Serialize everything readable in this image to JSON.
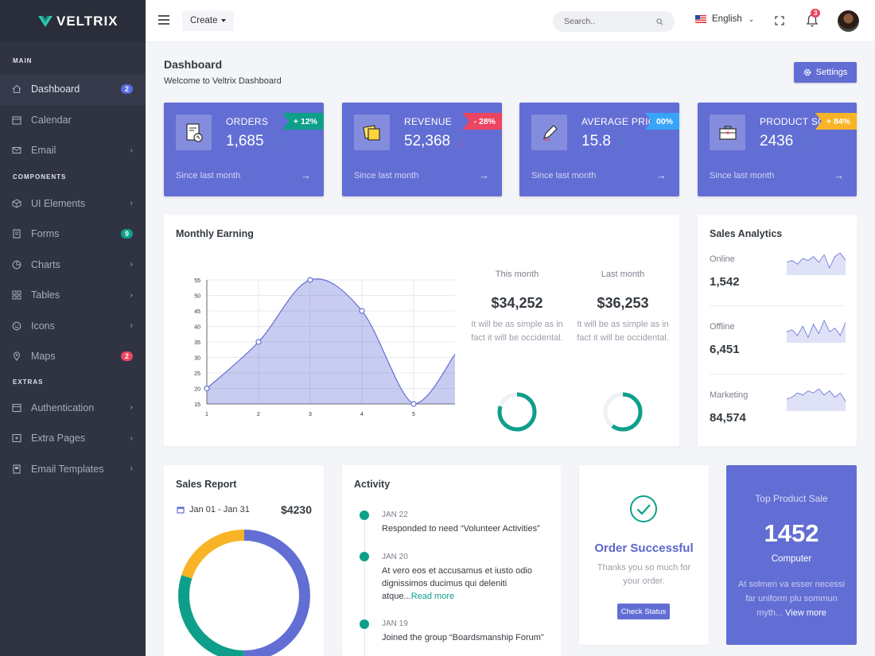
{
  "brand": {
    "name": "VELTRIX"
  },
  "sidebar": {
    "sections": [
      {
        "title": "MAIN"
      },
      {
        "title": "COMPONENTS"
      },
      {
        "title": "EXTRAS"
      }
    ],
    "items": [
      {
        "label": "Dashboard",
        "badge": "2"
      },
      {
        "label": "Calendar"
      },
      {
        "label": "Email"
      },
      {
        "label": "UI Elements"
      },
      {
        "label": "Forms",
        "badge": "9"
      },
      {
        "label": "Charts"
      },
      {
        "label": "Tables"
      },
      {
        "label": "Icons"
      },
      {
        "label": "Maps",
        "badge": "2"
      },
      {
        "label": "Authentication"
      },
      {
        "label": "Extra Pages"
      },
      {
        "label": "Email Templates"
      }
    ]
  },
  "topbar": {
    "create_label": "Create",
    "search_placeholder": "Search..",
    "language": "English",
    "notification_count": "3"
  },
  "page": {
    "title": "Dashboard",
    "subtitle": "Welcome to Veltrix Dashboard",
    "settings_label": "Settings"
  },
  "stats": [
    {
      "title": "ORDERS",
      "value": "1,685",
      "change": "+ 12%",
      "footer": "Since last month",
      "ribbon_color": "#0e9f8a"
    },
    {
      "title": "REVENUE",
      "value": "52,368",
      "change": "- 28%",
      "footer": "Since last month",
      "ribbon_color": "#ec4561"
    },
    {
      "title": "AVERAGE PRICE",
      "value": "15.8",
      "change": "00%",
      "footer": "Since last month",
      "ribbon_color": "#38a4f8"
    },
    {
      "title": "PRODUCT SOLD",
      "value": "2436",
      "change": "+ 84%",
      "footer": "Since last month",
      "ribbon_color": "#f8b425"
    }
  ],
  "monthly_earning": {
    "title": "Monthly Earning",
    "this_month": {
      "label": "This month",
      "value": "$34,252",
      "desc": "It will be as simple as in fact it will be occidental.",
      "progress": 0.8
    },
    "last_month": {
      "label": "Last month",
      "value": "$36,253",
      "desc": "It will be as simple as in fact it will be occidental.",
      "progress": 0.6
    }
  },
  "chart_data": {
    "type": "area",
    "x": [
      1,
      2,
      3,
      4,
      5,
      6
    ],
    "xtick_labels": [
      "1",
      "2",
      "3",
      "4",
      "5"
    ],
    "values": [
      20,
      35,
      55,
      45,
      15,
      31
    ],
    "ylim": [
      15,
      55
    ],
    "yticks": [
      15,
      20,
      25,
      30,
      35,
      40,
      45,
      50,
      55
    ],
    "grid": true,
    "color": "#626ed4"
  },
  "sales_analytics": {
    "title": "Sales Analytics",
    "rows": [
      {
        "label": "Online",
        "value": "1,542",
        "spark": [
          6,
          7,
          5,
          8,
          7,
          9,
          6,
          10,
          3,
          9,
          11,
          7
        ]
      },
      {
        "label": "Offline",
        "value": "6,451",
        "spark": [
          5,
          6,
          3,
          8,
          2,
          9,
          4,
          11,
          5,
          7,
          3,
          10
        ]
      },
      {
        "label": "Marketing",
        "value": "84,574",
        "spark": [
          5,
          6,
          8,
          7,
          9,
          8,
          10,
          7,
          9,
          6,
          8,
          4
        ]
      }
    ]
  },
  "sales_report": {
    "title": "Sales Report",
    "date_range": "Jan 01 - Jan 31",
    "total": "$4230",
    "donut": [
      {
        "value": 50,
        "color": "#626ed4"
      },
      {
        "value": 30,
        "color": "#0e9f8a"
      },
      {
        "value": 20,
        "color": "#f8b425"
      }
    ]
  },
  "activity": {
    "title": "Activity",
    "items": [
      {
        "date": "JAN 22",
        "text": "Responded to need “Volunteer Activities”"
      },
      {
        "date": "JAN 20",
        "text": "At vero eos et accusamus et iusto odio dignissimos ducimus qui deleniti atque...",
        "link": "Read more"
      },
      {
        "date": "JAN 19",
        "text": "Joined the group “Boardsmanship Forum”"
      }
    ]
  },
  "order": {
    "title": "Order Successful",
    "desc": "Thanks you so much for your order.",
    "button": "Check Status"
  },
  "top_product": {
    "title": "Top Product Sale",
    "value": "1452",
    "subtitle": "Computer",
    "desc": "At solmen va esser necessi far uniform plu sommun myth...",
    "link": "View more"
  }
}
